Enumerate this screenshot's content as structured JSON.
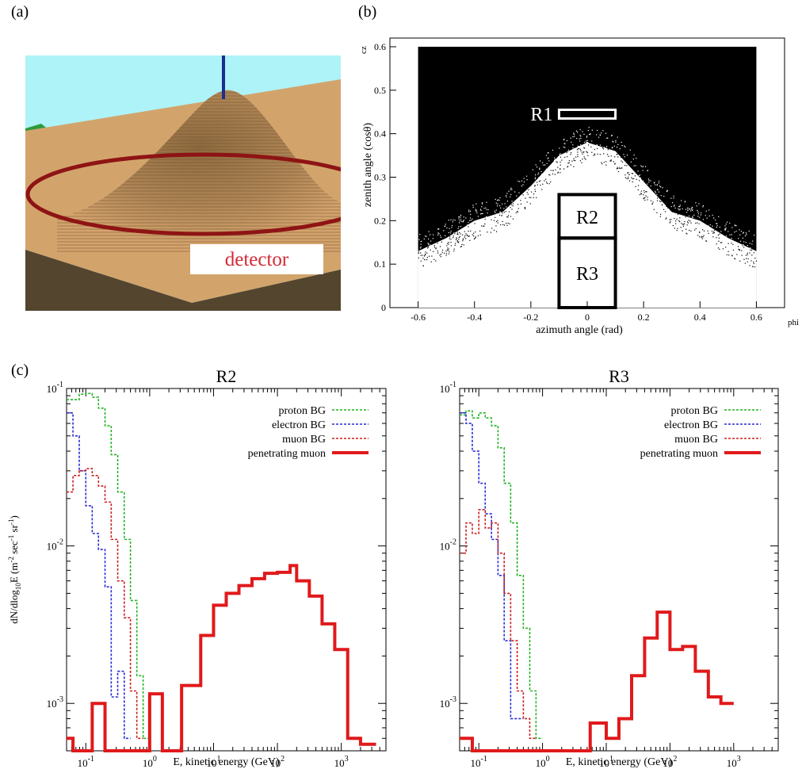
{
  "panel_labels": {
    "a": "(a)",
    "b": "(b)",
    "c": "(c)"
  },
  "scene": {
    "detector_label": "detector"
  },
  "chart_data": [
    {
      "id": "b",
      "type": "scatter",
      "title": "",
      "xlabel": "azimuth angle (rad)",
      "ylabel": "zenith angle (cosθ)",
      "x_axis_name": "phi",
      "y_axis_name": "cz",
      "xlim": [
        -0.7,
        0.7
      ],
      "ylim": [
        0,
        0.62
      ],
      "xticks": [
        "-0.6",
        "-0.4",
        "-0.2",
        "0",
        "0.2",
        "0.4",
        "0.6"
      ],
      "yticks": [
        "0",
        "0.1",
        "0.2",
        "0.3",
        "0.4",
        "0.5",
        "0.6"
      ],
      "boundary": {
        "x": [
          -0.6,
          -0.5,
          -0.4,
          -0.3,
          -0.2,
          -0.1,
          0,
          0.1,
          0.2,
          0.3,
          0.4,
          0.5,
          0.6
        ],
        "y": [
          0.13,
          0.16,
          0.2,
          0.22,
          0.28,
          0.35,
          0.38,
          0.36,
          0.29,
          0.22,
          0.2,
          0.16,
          0.13
        ]
      },
      "regions": [
        {
          "label": "R1",
          "x": [
            -0.1,
            0.1
          ],
          "y": [
            0.435,
            0.455
          ]
        },
        {
          "label": "R2",
          "x": [
            -0.1,
            0.1
          ],
          "y": [
            0.16,
            0.26
          ]
        },
        {
          "label": "R3",
          "x": [
            -0.1,
            0.1
          ],
          "y": [
            0,
            0.16
          ]
        }
      ]
    },
    {
      "id": "R2",
      "type": "line",
      "title": "R2",
      "xlabel": "E, kinetic energy (GeV)",
      "ylabel": "dN/dlog10E (m-2 sec-1 sr-1)",
      "xscale": "log",
      "yscale": "log",
      "xlim": [
        0.05,
        5000
      ],
      "ylim": [
        0.0005,
        0.1
      ],
      "xticks": [
        "10-1",
        "100",
        "101",
        "102",
        "103"
      ],
      "yticks": [
        "10-3",
        "10-2",
        "10-1"
      ],
      "legend_position": "top-right",
      "series": [
        {
          "name": "proton BG",
          "color": "#22b322",
          "style": "dashed",
          "bins": [
            [
              0.05,
              0.079,
              0.085
            ],
            [
              0.079,
              0.1,
              0.092
            ],
            [
              0.1,
              0.126,
              0.093
            ],
            [
              0.126,
              0.158,
              0.088
            ],
            [
              0.158,
              0.2,
              0.075
            ],
            [
              0.2,
              0.25,
              0.058
            ],
            [
              0.25,
              0.316,
              0.038
            ],
            [
              0.316,
              0.4,
              0.022
            ],
            [
              0.4,
              0.5,
              0.011
            ],
            [
              0.5,
              0.63,
              0.0045
            ],
            [
              0.63,
              0.79,
              0.0015
            ],
            [
              0.79,
              1.0,
              0.0006
            ]
          ]
        },
        {
          "name": "electron BG",
          "color": "#2a2ad6",
          "style": "dashed",
          "bins": [
            [
              0.05,
              0.063,
              0.07
            ],
            [
              0.063,
              0.079,
              0.05
            ],
            [
              0.079,
              0.1,
              0.03
            ],
            [
              0.1,
              0.126,
              0.018
            ],
            [
              0.126,
              0.158,
              0.012
            ],
            [
              0.158,
              0.2,
              0.0095
            ],
            [
              0.2,
              0.25,
              0.0055
            ],
            [
              0.25,
              0.316,
              0.0011
            ],
            [
              0.316,
              0.4,
              0.0016
            ],
            [
              0.4,
              0.5,
              0.0006
            ]
          ]
        },
        {
          "name": "muon BG",
          "color": "#cc2020",
          "style": "dashed",
          "bins": [
            [
              0.05,
              0.063,
              0.022
            ],
            [
              0.063,
              0.079,
              0.028
            ],
            [
              0.079,
              0.1,
              0.03
            ],
            [
              0.1,
              0.126,
              0.031
            ],
            [
              0.126,
              0.158,
              0.028
            ],
            [
              0.158,
              0.2,
              0.024
            ],
            [
              0.2,
              0.25,
              0.019
            ],
            [
              0.25,
              0.316,
              0.011
            ],
            [
              0.316,
              0.4,
              0.006
            ],
            [
              0.4,
              0.5,
              0.0035
            ],
            [
              0.5,
              0.63,
              0.0012
            ],
            [
              0.63,
              0.79,
              0.0006
            ]
          ]
        },
        {
          "name": "penetrating muon",
          "color": "#e0191b",
          "style": "solid",
          "bins": [
            [
              0.05,
              0.063,
              0.0006
            ],
            [
              0.063,
              0.126,
              0.0005
            ],
            [
              0.126,
              0.2,
              0.001
            ],
            [
              0.2,
              1.0,
              0.0005
            ],
            [
              1.0,
              1.58,
              0.00115
            ],
            [
              1.58,
              3.16,
              0.0005
            ],
            [
              3.16,
              6.3,
              0.0013
            ],
            [
              6.3,
              10,
              0.0027
            ],
            [
              10,
              15.8,
              0.0042
            ],
            [
              15.8,
              25,
              0.005
            ],
            [
              25,
              40,
              0.0056
            ],
            [
              40,
              63,
              0.0062
            ],
            [
              63,
              100,
              0.0067
            ],
            [
              100,
              126,
              0.0068
            ],
            [
              126,
              158,
              0.0068
            ],
            [
              158,
              200,
              0.0075
            ],
            [
              200,
              316,
              0.006
            ],
            [
              316,
              500,
              0.0048
            ],
            [
              500,
              790,
              0.0032
            ],
            [
              790,
              1260,
              0.0022
            ],
            [
              1260,
              2000,
              0.0006
            ],
            [
              2000,
              3500,
              0.00055
            ]
          ]
        }
      ]
    },
    {
      "id": "R3",
      "type": "line",
      "title": "R3",
      "xlabel": "E, kinetic energy (GeV)",
      "ylabel": "",
      "xscale": "log",
      "yscale": "log",
      "xlim": [
        0.05,
        5000
      ],
      "ylim": [
        0.0005,
        0.1
      ],
      "xticks": [
        "10-1",
        "100",
        "101",
        "102",
        "103"
      ],
      "yticks": [
        "10-3",
        "10-2",
        "10-1"
      ],
      "legend_position": "top-right",
      "series": [
        {
          "name": "proton BG",
          "color": "#22b322",
          "style": "dashed",
          "bins": [
            [
              0.05,
              0.063,
              0.068
            ],
            [
              0.063,
              0.079,
              0.072
            ],
            [
              0.079,
              0.1,
              0.065
            ],
            [
              0.1,
              0.126,
              0.07
            ],
            [
              0.126,
              0.158,
              0.065
            ],
            [
              0.158,
              0.2,
              0.058
            ],
            [
              0.2,
              0.25,
              0.042
            ],
            [
              0.25,
              0.316,
              0.025
            ],
            [
              0.316,
              0.4,
              0.014
            ],
            [
              0.4,
              0.5,
              0.0065
            ],
            [
              0.5,
              0.63,
              0.003
            ],
            [
              0.63,
              0.79,
              0.0012
            ],
            [
              0.79,
              1.0,
              0.0006
            ]
          ]
        },
        {
          "name": "electron BG",
          "color": "#2a2ad6",
          "style": "dashed",
          "bins": [
            [
              0.05,
              0.063,
              0.07
            ],
            [
              0.063,
              0.079,
              0.06
            ],
            [
              0.079,
              0.1,
              0.04
            ],
            [
              0.1,
              0.126,
              0.025
            ],
            [
              0.126,
              0.158,
              0.016
            ],
            [
              0.158,
              0.2,
              0.011
            ],
            [
              0.2,
              0.25,
              0.0065
            ],
            [
              0.25,
              0.316,
              0.0025
            ],
            [
              0.316,
              0.4,
              0.0008
            ],
            [
              0.4,
              0.5,
              0.0008
            ]
          ]
        },
        {
          "name": "muon BG",
          "color": "#cc2020",
          "style": "dashed",
          "bins": [
            [
              0.05,
              0.063,
              0.009
            ],
            [
              0.063,
              0.079,
              0.014
            ],
            [
              0.079,
              0.1,
              0.012
            ],
            [
              0.1,
              0.126,
              0.017
            ],
            [
              0.126,
              0.158,
              0.013
            ],
            [
              0.158,
              0.2,
              0.014
            ],
            [
              0.2,
              0.25,
              0.009
            ],
            [
              0.25,
              0.316,
              0.005
            ],
            [
              0.316,
              0.4,
              0.0025
            ],
            [
              0.4,
              0.5,
              0.0012
            ],
            [
              0.5,
              0.63,
              0.0008
            ],
            [
              0.63,
              0.79,
              0.0006
            ]
          ]
        },
        {
          "name": "penetrating muon",
          "color": "#e0191b",
          "style": "solid",
          "bins": [
            [
              0.05,
              0.063,
              0.0006
            ],
            [
              0.063,
              0.079,
              0.0006
            ],
            [
              0.079,
              5.6,
              0.0005
            ],
            [
              5.6,
              10,
              0.00075
            ],
            [
              10,
              15.8,
              0.0006
            ],
            [
              15.8,
              25,
              0.0008
            ],
            [
              25,
              40,
              0.0015
            ],
            [
              40,
              63,
              0.0026
            ],
            [
              63,
              100,
              0.0038
            ],
            [
              100,
              158,
              0.0022
            ],
            [
              158,
              250,
              0.0023
            ],
            [
              250,
              400,
              0.0016
            ],
            [
              400,
              630,
              0.0011
            ],
            [
              630,
              1000,
              0.001
            ]
          ]
        }
      ]
    }
  ]
}
